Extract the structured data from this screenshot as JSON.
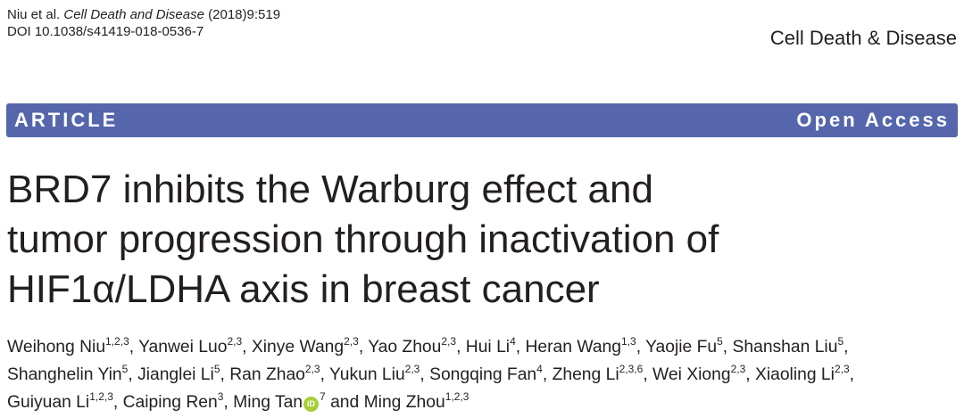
{
  "header": {
    "citation_authors": "Niu et al. ",
    "citation_journal": "Cell Death and Disease",
    "citation_rest": " (2018)9:519",
    "doi": "DOI 10.1038/s41419-018-0536-7",
    "journal": "Cell Death & Disease"
  },
  "banner": {
    "left": "ARTICLE",
    "right": "Open Access",
    "color": "#5566ad"
  },
  "title": {
    "lines": [
      "BRD7 inhibits the Warburg effect and",
      "tumor progression through inactivation of",
      "HIF1α/LDHA axis in breast cancer"
    ]
  },
  "authors": {
    "orcid_icon": "orcid-icon",
    "lines": [
      [
        {
          "name": "Weihong Niu",
          "sup": "1,2,3",
          "sep": ", "
        },
        {
          "name": "Yanwei Luo",
          "sup": "2,3",
          "sep": ", "
        },
        {
          "name": "Xinye Wang",
          "sup": "2,3",
          "sep": ", "
        },
        {
          "name": "Yao Zhou",
          "sup": "2,3",
          "sep": ", "
        },
        {
          "name": "Hui Li",
          "sup": "4",
          "sep": ", "
        },
        {
          "name": "Heran Wang",
          "sup": "1,3",
          "sep": ", "
        },
        {
          "name": "Yaojie Fu",
          "sup": "5",
          "sep": ", "
        },
        {
          "name": "Shanshan Liu",
          "sup": "5",
          "sep": ","
        }
      ],
      [
        {
          "name": "Shanghelin Yin",
          "sup": "5",
          "sep": ", "
        },
        {
          "name": "Jianglei Li",
          "sup": "5",
          "sep": ", "
        },
        {
          "name": "Ran Zhao",
          "sup": "2,3",
          "sep": ", "
        },
        {
          "name": "Yukun Liu",
          "sup": "2,3",
          "sep": ", "
        },
        {
          "name": "Songqing Fan",
          "sup": "4",
          "sep": ", "
        },
        {
          "name": "Zheng Li",
          "sup": "2,3,6",
          "sep": ", "
        },
        {
          "name": "Wei Xiong",
          "sup": "2,3",
          "sep": ", "
        },
        {
          "name": "Xiaoling Li",
          "sup": "2,3",
          "sep": ","
        }
      ],
      [
        {
          "name": "Guiyuan Li",
          "sup": "1,2,3",
          "sep": ", "
        },
        {
          "name": "Caiping Ren",
          "sup": "3",
          "sep": ", "
        },
        {
          "name": "Ming Tan",
          "orcid": true,
          "sup": "7",
          "sep": " and "
        },
        {
          "name": "Ming Zhou",
          "sup": "1,2,3",
          "sep": ""
        }
      ]
    ]
  }
}
